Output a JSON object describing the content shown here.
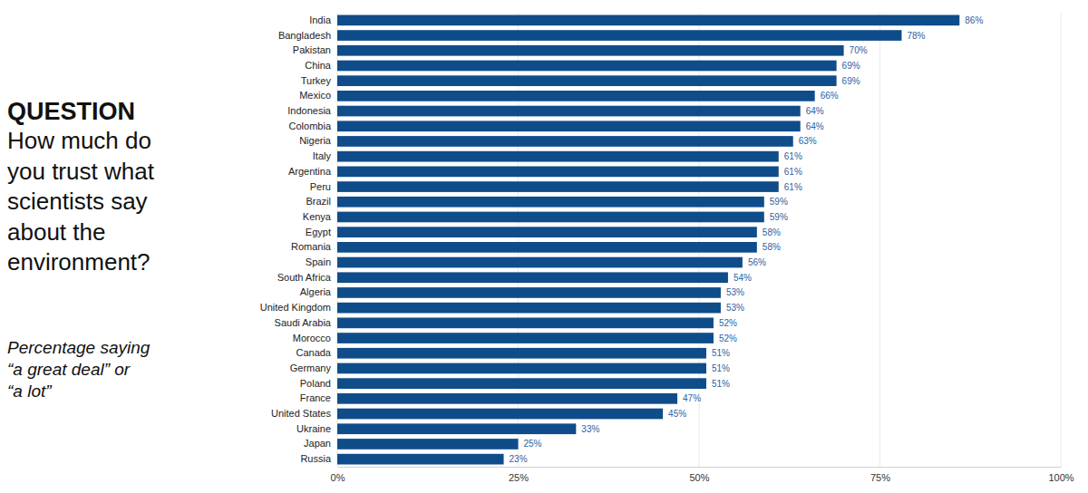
{
  "chart_data": {
    "type": "bar",
    "orientation": "horizontal",
    "title": "QUESTION",
    "subtitle": "How much do\nyou trust what\nscientists say\nabout the\nenvironment?",
    "annotations": [
      "Percentage saying\n“a great deal” or\n“a lot”"
    ],
    "categories": [
      "India",
      "Bangladesh",
      "Pakistan",
      "China",
      "Turkey",
      "Mexico",
      "Indonesia",
      "Colombia",
      "Nigeria",
      "Italy",
      "Argentina",
      "Peru",
      "Brazil",
      "Kenya",
      "Egypt",
      "Romania",
      "Spain",
      "South Africa",
      "Algeria",
      "United Kingdom",
      "Saudi Arabia",
      "Morocco",
      "Canada",
      "Germany",
      "Poland",
      "France",
      "United States",
      "Ukraine",
      "Japan",
      "Russia"
    ],
    "values": [
      86,
      78,
      70,
      69,
      69,
      66,
      64,
      64,
      63,
      61,
      61,
      61,
      59,
      59,
      58,
      58,
      56,
      54,
      53,
      53,
      52,
      52,
      51,
      51,
      51,
      47,
      45,
      33,
      25,
      23
    ],
    "value_labels": [
      "86%",
      "78%",
      "70%",
      "69%",
      "69%",
      "66%",
      "64%",
      "64%",
      "63%",
      "61%",
      "61%",
      "61%",
      "59%",
      "59%",
      "58%",
      "58%",
      "56%",
      "54%",
      "53%",
      "53%",
      "52%",
      "52%",
      "51%",
      "51%",
      "51%",
      "47%",
      "45%",
      "33%",
      "25%",
      "23%"
    ],
    "data_labels": true,
    "color": "#0f4c8a",
    "xlim": [
      0,
      100
    ],
    "xticks": [
      {
        "value": 0,
        "label": "0%"
      },
      {
        "value": 25,
        "label": "25%"
      },
      {
        "value": 50,
        "label": "50%"
      },
      {
        "value": 75,
        "label": "75%"
      },
      {
        "value": 100,
        "label": "100%"
      }
    ],
    "grid": true
  }
}
